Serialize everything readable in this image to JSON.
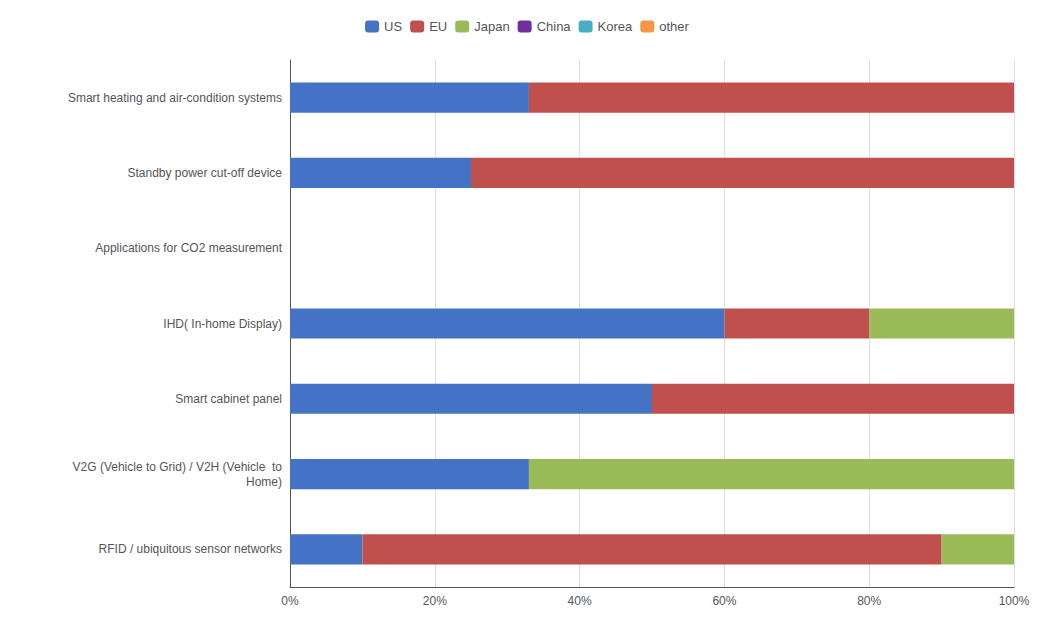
{
  "chart_data": {
    "type": "bar",
    "orientation": "horizontal",
    "stacked": true,
    "categories": [
      "Smart heating and air-condition systems",
      "Standby power cut-off device",
      "Applications for CO2 measurement",
      "IHD( In-home Display)",
      "Smart cabinet panel",
      "V2G (Vehicle to Grid) / V2H (Vehicle  to\nHome)",
      "RFID / ubiquitous sensor networks"
    ],
    "series": [
      {
        "name": "US",
        "color": "#4472C4",
        "values": [
          33,
          25,
          0,
          60,
          50,
          33,
          10
        ]
      },
      {
        "name": "EU",
        "color": "#C0504D",
        "values": [
          67,
          75,
          0,
          20,
          50,
          0,
          80
        ]
      },
      {
        "name": "Japan",
        "color": "#9BBB59",
        "values": [
          0,
          0,
          0,
          20,
          0,
          67,
          10
        ]
      },
      {
        "name": "China",
        "color": "#7030A0",
        "values": [
          0,
          0,
          0,
          0,
          0,
          0,
          0
        ]
      },
      {
        "name": "Korea",
        "color": "#4BACC6",
        "values": [
          0,
          0,
          0,
          0,
          0,
          0,
          0
        ]
      },
      {
        "name": "other",
        "color": "#F79646",
        "values": [
          0,
          0,
          0,
          0,
          0,
          0,
          0
        ]
      }
    ],
    "xlim": [
      0,
      100
    ],
    "xticks": [
      {
        "value": 0,
        "label": "0%"
      },
      {
        "value": 20,
        "label": "20%"
      },
      {
        "value": 40,
        "label": "40%"
      },
      {
        "value": 60,
        "label": "60%"
      },
      {
        "value": 80,
        "label": "80%"
      },
      {
        "value": 100,
        "label": "100%"
      }
    ],
    "grid": true,
    "legend": "top"
  }
}
